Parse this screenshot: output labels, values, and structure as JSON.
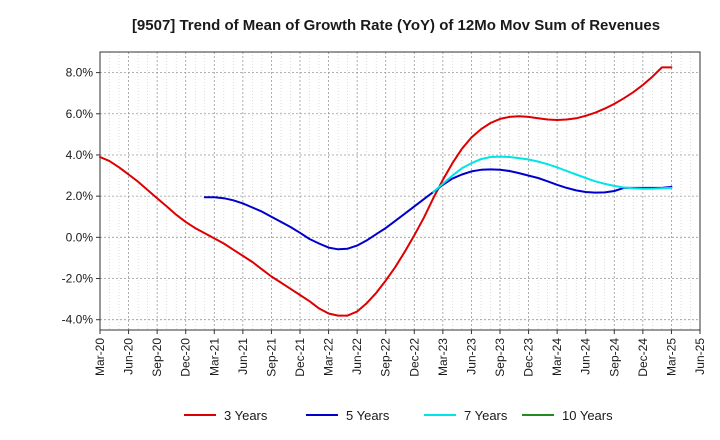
{
  "chart_data": {
    "type": "line",
    "title": "[9507]  Trend of Mean of Growth Rate (YoY) of 12Mo Mov Sum of Revenues",
    "xlabel": "",
    "ylabel": "",
    "ylim": [
      -4.5,
      9.0
    ],
    "yticks": [
      -4.0,
      -2.0,
      0.0,
      2.0,
      4.0,
      6.0,
      8.0
    ],
    "ytick_labels": [
      "-4.0%",
      "-2.0%",
      "0.0%",
      "2.0%",
      "4.0%",
      "6.0%",
      "8.0%"
    ],
    "xlim": [
      0,
      63
    ],
    "xticks": [
      0,
      3,
      6,
      9,
      12,
      15,
      18,
      21,
      24,
      27,
      30,
      33,
      36,
      39,
      42,
      45,
      48,
      51,
      54,
      57,
      60,
      63
    ],
    "xtick_labels": [
      "Mar-20",
      "Jun-20",
      "Sep-20",
      "Dec-20",
      "Mar-21",
      "Jun-21",
      "Sep-21",
      "Dec-21",
      "Mar-22",
      "Jun-22",
      "Sep-22",
      "Dec-22",
      "Mar-23",
      "Jun-23",
      "Sep-23",
      "Dec-23",
      "Mar-24",
      "Jun-24",
      "Sep-24",
      "Dec-24",
      "Mar-25",
      "Jun-25"
    ],
    "grid": true,
    "legend_position": "bottom",
    "series": [
      {
        "name": "3 Years",
        "color": "#dd0000",
        "x": [
          0,
          1,
          2,
          3,
          4,
          5,
          6,
          7,
          8,
          9,
          10,
          11,
          12,
          13,
          14,
          15,
          16,
          17,
          18,
          19,
          20,
          21,
          22,
          23,
          24,
          25,
          26,
          27,
          28,
          29,
          30,
          31,
          32,
          33,
          34,
          35,
          36,
          37,
          38,
          39,
          40,
          41,
          42,
          43,
          44,
          45,
          46,
          47,
          48,
          49,
          50,
          51,
          52,
          53,
          54,
          55,
          56,
          57,
          58,
          59,
          60
        ],
        "values": [
          3.9,
          3.7,
          3.4,
          3.05,
          2.7,
          2.3,
          1.9,
          1.5,
          1.1,
          0.75,
          0.45,
          0.2,
          -0.05,
          -0.3,
          -0.6,
          -0.9,
          -1.2,
          -1.55,
          -1.9,
          -2.2,
          -2.5,
          -2.8,
          -3.1,
          -3.45,
          -3.7,
          -3.8,
          -3.8,
          -3.6,
          -3.2,
          -2.7,
          -2.1,
          -1.45,
          -0.7,
          0.1,
          0.95,
          1.9,
          2.8,
          3.6,
          4.3,
          4.85,
          5.25,
          5.55,
          5.75,
          5.85,
          5.88,
          5.85,
          5.78,
          5.72,
          5.7,
          5.72,
          5.78,
          5.9,
          6.05,
          6.25,
          6.48,
          6.75,
          7.05,
          7.4,
          7.8,
          8.25,
          8.25
        ]
      },
      {
        "name": "5 Years",
        "color": "#0000cc",
        "x": [
          11,
          12,
          13,
          14,
          15,
          16,
          17,
          18,
          19,
          20,
          21,
          22,
          23,
          24,
          25,
          26,
          27,
          28,
          29,
          30,
          31,
          32,
          33,
          34,
          35,
          36,
          37,
          38,
          39,
          40,
          41,
          42,
          43,
          44,
          45,
          46,
          47,
          48,
          49,
          50,
          51,
          52,
          53,
          54,
          55,
          56,
          57,
          58,
          59,
          60
        ],
        "values": [
          1.95,
          1.95,
          1.9,
          1.8,
          1.65,
          1.45,
          1.25,
          1.0,
          0.75,
          0.5,
          0.22,
          -0.08,
          -0.3,
          -0.5,
          -0.58,
          -0.55,
          -0.4,
          -0.15,
          0.15,
          0.45,
          0.8,
          1.15,
          1.5,
          1.85,
          2.2,
          2.55,
          2.85,
          3.05,
          3.2,
          3.28,
          3.3,
          3.28,
          3.22,
          3.12,
          3.0,
          2.88,
          2.72,
          2.55,
          2.4,
          2.28,
          2.2,
          2.17,
          2.18,
          2.25,
          2.4,
          2.4,
          2.4,
          2.4,
          2.4,
          2.45
        ]
      },
      {
        "name": "7 Years",
        "color": "#00e5e5",
        "x": [
          35,
          36,
          37,
          38,
          39,
          40,
          41,
          42,
          43,
          44,
          45,
          46,
          47,
          48,
          49,
          50,
          51,
          52,
          53,
          54,
          55,
          56,
          57,
          58,
          59,
          60
        ],
        "values": [
          2.2,
          2.6,
          3.0,
          3.35,
          3.6,
          3.8,
          3.9,
          3.92,
          3.9,
          3.85,
          3.78,
          3.68,
          3.55,
          3.4,
          3.22,
          3.05,
          2.88,
          2.72,
          2.6,
          2.5,
          2.42,
          2.38,
          2.36,
          2.36,
          2.38,
          2.4
        ]
      },
      {
        "name": "10 Years",
        "color": "#228b22",
        "x": [],
        "values": []
      }
    ]
  }
}
